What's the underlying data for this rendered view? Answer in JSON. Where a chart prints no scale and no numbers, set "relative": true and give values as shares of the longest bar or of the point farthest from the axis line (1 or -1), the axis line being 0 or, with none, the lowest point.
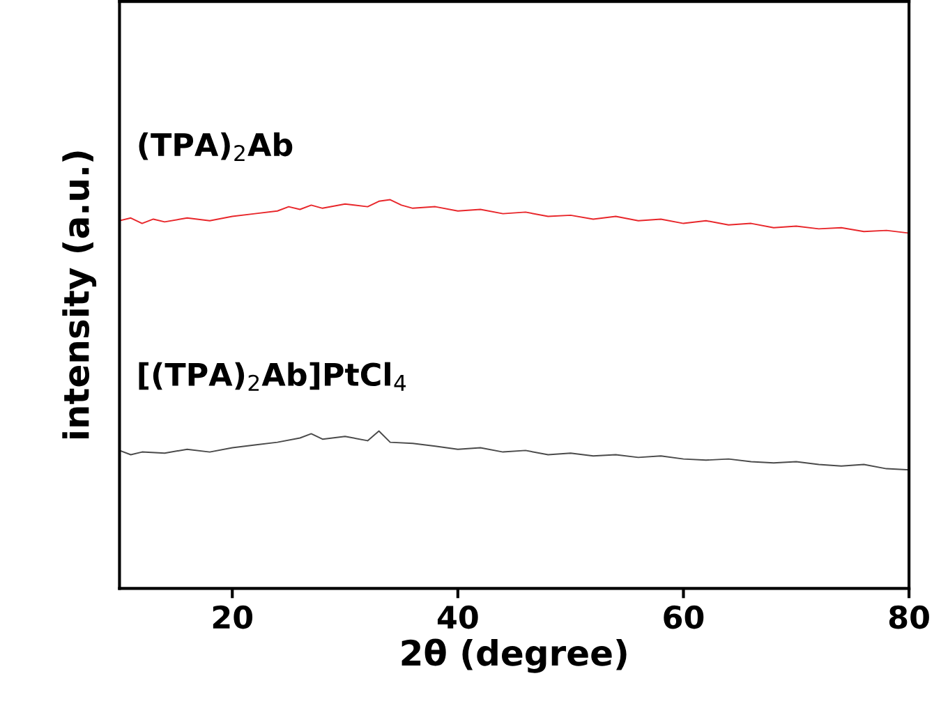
{
  "chart_data": {
    "type": "line",
    "relative": true,
    "xlabel": "2θ (degree)",
    "ylabel": "intensity (a.u.)",
    "xlim": [
      10,
      80
    ],
    "xticks": [
      20,
      40,
      60,
      80
    ],
    "tick_labels": "x",
    "grid": false,
    "legend": false,
    "marker": "none",
    "line_style": "solid",
    "series": [
      {
        "name": "(TPA)$_{2}$Ab",
        "color": "#e8262a",
        "x": [
          10,
          11,
          12,
          13,
          14,
          16,
          18,
          20,
          22,
          24,
          25,
          26,
          27,
          28,
          30,
          32,
          33,
          34,
          35,
          36,
          38,
          40,
          42,
          44,
          46,
          48,
          50,
          52,
          54,
          56,
          58,
          60,
          62,
          64,
          66,
          68,
          70,
          72,
          74,
          76,
          78,
          80
        ],
        "values": [
          0.946,
          0.953,
          0.939,
          0.95,
          0.943,
          0.953,
          0.946,
          0.957,
          0.964,
          0.971,
          0.982,
          0.975,
          0.986,
          0.978,
          0.989,
          0.982,
          0.996,
          1.0,
          0.986,
          0.978,
          0.982,
          0.971,
          0.975,
          0.964,
          0.968,
          0.957,
          0.96,
          0.95,
          0.957,
          0.946,
          0.95,
          0.939,
          0.946,
          0.935,
          0.939,
          0.928,
          0.932,
          0.925,
          0.928,
          0.918,
          0.921,
          0.914
        ]
      },
      {
        "name": "[(TPA)$_{2}$Ab]PtCl$_{4}$",
        "color": "#4a4a4a",
        "x": [
          10,
          11,
          12,
          14,
          16,
          18,
          20,
          22,
          24,
          26,
          27,
          28,
          30,
          32,
          33,
          34,
          36,
          38,
          40,
          42,
          44,
          46,
          48,
          50,
          52,
          54,
          56,
          58,
          60,
          62,
          64,
          66,
          68,
          70,
          72,
          74,
          76,
          78,
          80
        ],
        "values": [
          0.355,
          0.344,
          0.351,
          0.348,
          0.358,
          0.351,
          0.362,
          0.369,
          0.376,
          0.387,
          0.398,
          0.384,
          0.391,
          0.38,
          0.405,
          0.376,
          0.373,
          0.366,
          0.358,
          0.362,
          0.351,
          0.355,
          0.344,
          0.348,
          0.341,
          0.344,
          0.337,
          0.341,
          0.333,
          0.33,
          0.333,
          0.326,
          0.323,
          0.326,
          0.319,
          0.315,
          0.319,
          0.308,
          0.305
        ]
      }
    ]
  }
}
